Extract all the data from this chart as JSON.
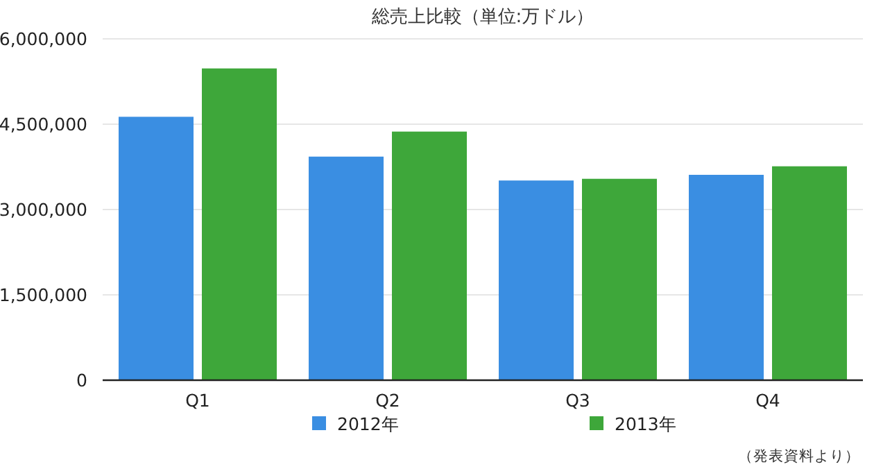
{
  "chart_data": {
    "type": "bar",
    "title": "総売上比較（単位:万ドル）",
    "categories": [
      "Q1",
      "Q2",
      "Q3",
      "Q4"
    ],
    "series": [
      {
        "name": "2012年",
        "color": "#3a8ee2",
        "values": [
          4630000,
          3930000,
          3510000,
          3610000
        ]
      },
      {
        "name": "2013年",
        "color": "#3ea73a",
        "values": [
          5480000,
          4370000,
          3540000,
          3760000
        ]
      }
    ],
    "ylim": [
      0,
      6000000
    ],
    "yticks": [
      0,
      {
        "value": 1500000,
        "label": "1,500,000"
      },
      {
        "value": 3000000,
        "label": "3,000,000"
      },
      {
        "value": 4500000,
        "label": "4,500,000"
      },
      {
        "value": 6000000,
        "label": "6,000,000"
      }
    ],
    "grid": "y",
    "legend": "bottom",
    "annotations": [
      "（発表資料より）"
    ]
  }
}
